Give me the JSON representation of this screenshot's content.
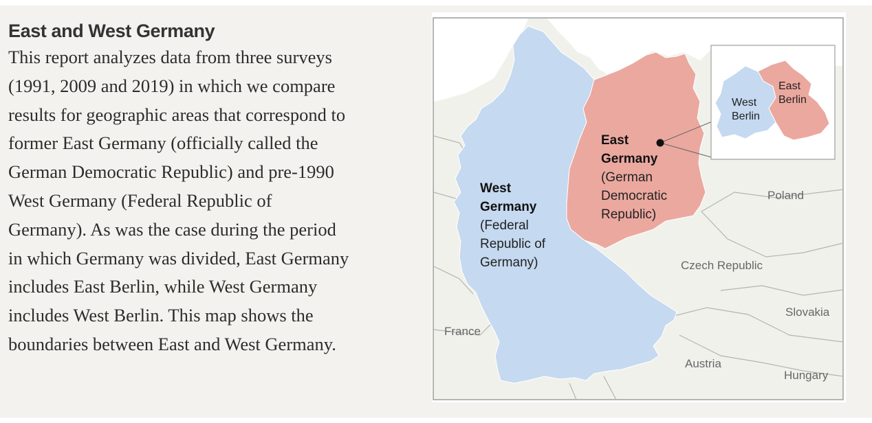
{
  "heading": "East and West Germany",
  "body_lines": [
    "This report analyzes data from three surveys",
    "(1991, 2009 and 2019) in which we compare",
    "results for geographic areas that correspond to",
    "former East Germany (officially called the",
    "German Democratic Republic) and pre-1990",
    "West Germany (Federal Republic of",
    "Germany). As was the case during the period",
    "in which Germany was divided, East Germany",
    "includes East Berlin, while West Germany",
    "includes West Berlin. This map shows the",
    "boundaries between East and West Germany."
  ],
  "map": {
    "colors": {
      "west": "#c5d9f0",
      "east": "#eba89f",
      "land": "#f1f1ec",
      "sea": "#ffffff",
      "border": "#9e9e9e"
    },
    "west_germany": {
      "name_line1": "West",
      "name_line2": "Germany",
      "sub_line1": "(Federal",
      "sub_line2": "Republic of",
      "sub_line3": "Germany)"
    },
    "east_germany": {
      "name_line1": "East",
      "name_line2": "Germany",
      "sub_line1": "(German",
      "sub_line2": "Democratic",
      "sub_line3": "Republic)"
    },
    "inset": {
      "west_line1": "West",
      "west_line2": "Berlin",
      "east_line1": "East",
      "east_line2": "Berlin"
    },
    "countries": {
      "poland": "Poland",
      "czech": "Czech Republic",
      "slovakia": "Slovakia",
      "france": "France",
      "austria": "Austria",
      "hungary": "Hungary"
    }
  }
}
